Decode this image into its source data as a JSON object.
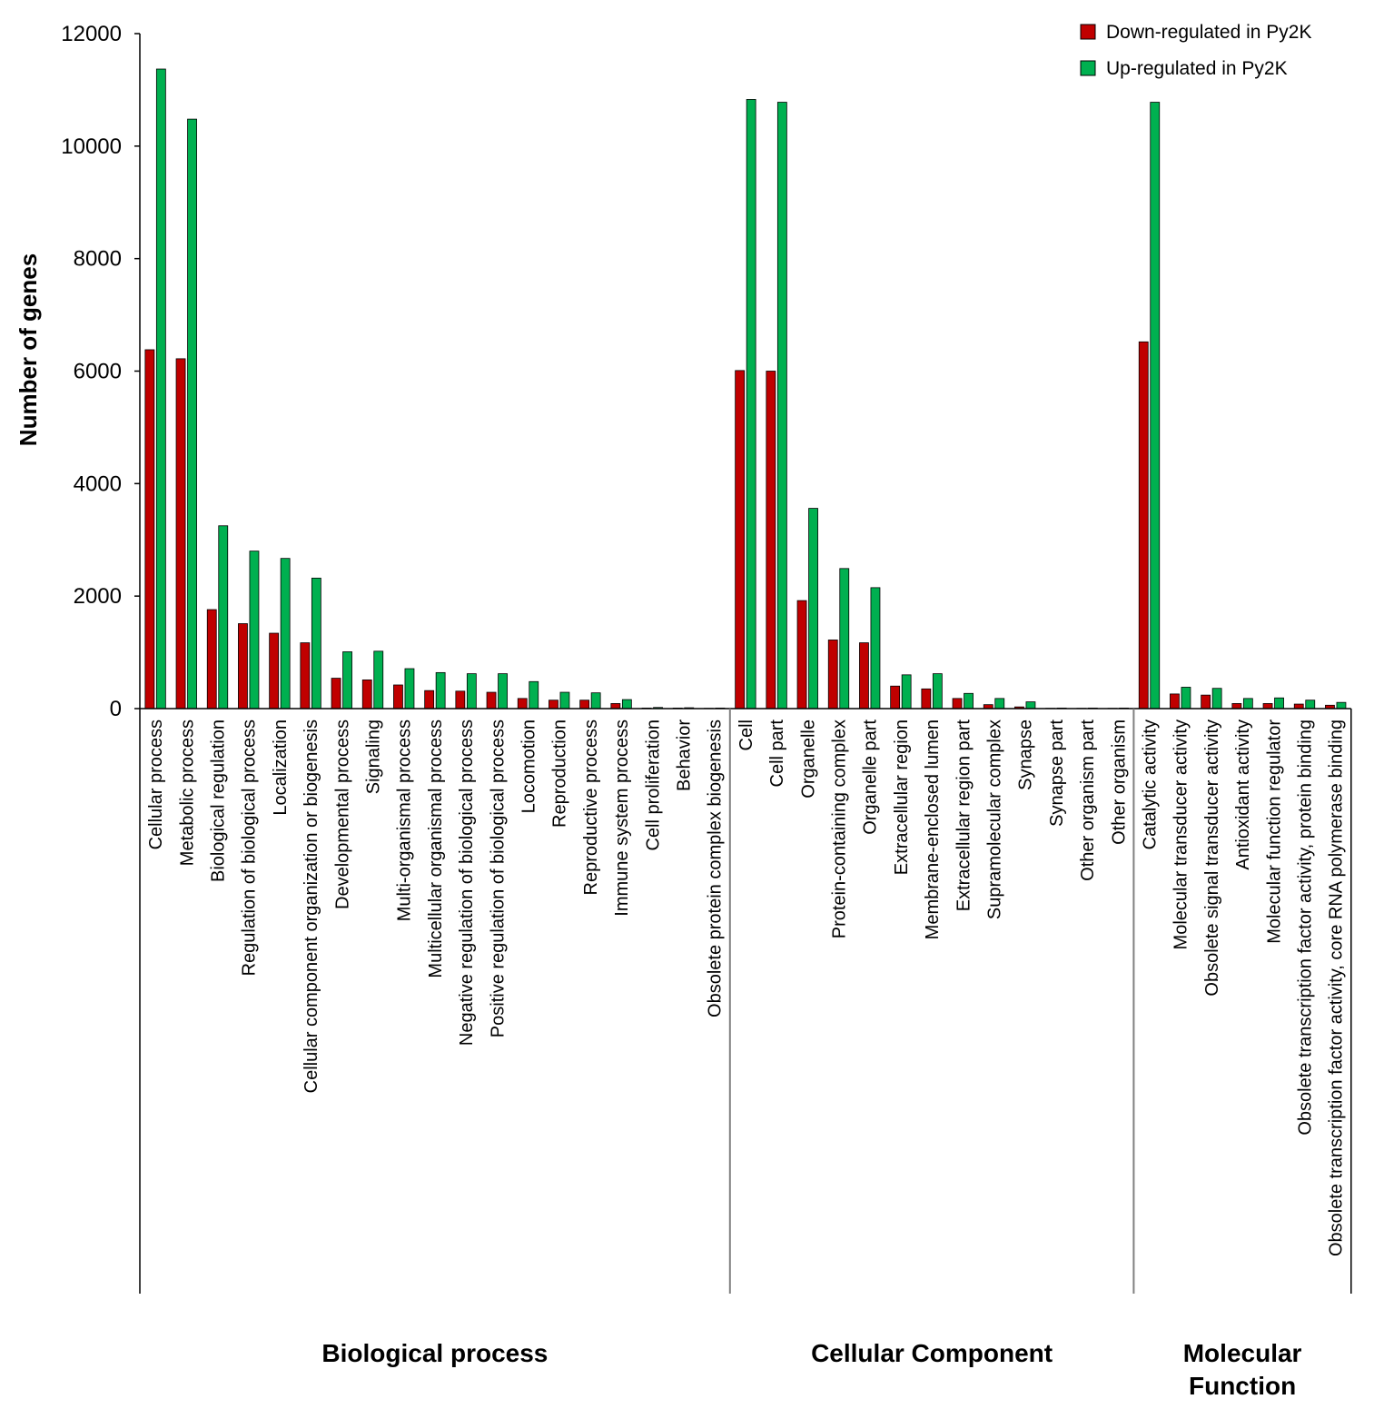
{
  "chart_data": {
    "type": "bar",
    "ylabel": "Number of genes",
    "ylim": [
      0,
      12000
    ],
    "yticks": [
      0,
      2000,
      4000,
      6000,
      8000,
      10000,
      12000
    ],
    "grid": false,
    "legend_position": "top-right",
    "series": [
      {
        "name": "Down-regulated in Py2K",
        "color": "#c00000"
      },
      {
        "name": "Up-regulated in Py2K",
        "color": "#00b050"
      }
    ],
    "groups": [
      {
        "label": "Biological process",
        "categories": [
          "Cellular process",
          "Metabolic process",
          "Biological regulation",
          "Regulation of biological process",
          "Localization",
          "Cellular component organization or biogenesis",
          "Developmental process",
          "Signaling",
          "Multi-organismal process",
          "Multicellular organismal process",
          "Negative regulation of biological process",
          "Positive regulation of biological process",
          "Locomotion",
          "Reproduction",
          "Reproductive process",
          "Immune system process",
          "Cell proliferation",
          "Behavior",
          "Obsolete protein complex biogenesis"
        ],
        "down": [
          6380,
          6220,
          1760,
          1510,
          1340,
          1170,
          540,
          510,
          420,
          320,
          310,
          290,
          180,
          150,
          150,
          90,
          10,
          10,
          5
        ],
        "up": [
          11370,
          10480,
          3250,
          2800,
          2670,
          2320,
          1010,
          1020,
          710,
          640,
          620,
          620,
          480,
          290,
          280,
          160,
          20,
          15,
          10
        ]
      },
      {
        "label": "Cellular Component",
        "categories": [
          "Cell",
          "Cell part",
          "Organelle",
          "Protein-containing complex",
          "Organelle part",
          "Extracellular region",
          "Membrane-enclosed lumen",
          "Extracellular region part",
          "Supramolecular complex",
          "Synapse",
          "Synapse part",
          "Other organism part",
          "Other organism"
        ],
        "down": [
          6010,
          6000,
          1920,
          1220,
          1170,
          400,
          350,
          180,
          70,
          30,
          5,
          5,
          5
        ],
        "up": [
          10830,
          10780,
          3560,
          2490,
          2150,
          600,
          620,
          270,
          180,
          120,
          10,
          10,
          10
        ]
      },
      {
        "label": "Molecular Function",
        "categories": [
          "Catalytic activity",
          "Molecular transducer activity",
          "Obsolete signal transducer activity",
          "Antioxidant activity",
          "Molecular function regulator",
          "Obsolete transcription factor activity, protein binding",
          "Obsolete transcription factor activity, core RNA polymerase binding"
        ],
        "down": [
          6520,
          260,
          240,
          90,
          90,
          80,
          60
        ],
        "up": [
          10780,
          380,
          360,
          180,
          190,
          150,
          110
        ]
      }
    ]
  }
}
